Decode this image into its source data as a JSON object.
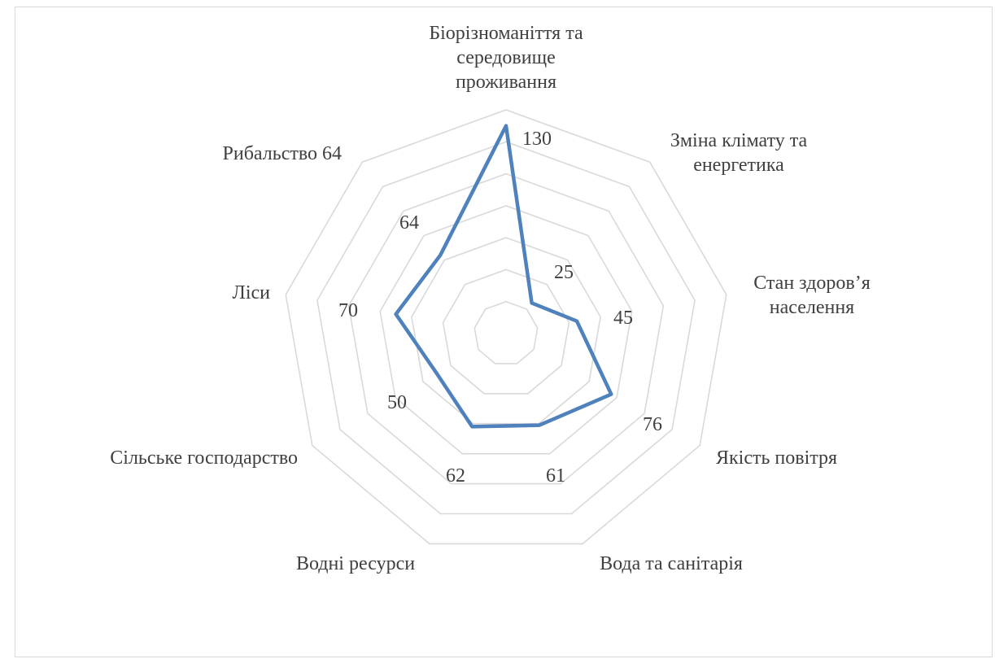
{
  "chart_data": {
    "type": "radar",
    "title": "",
    "categories": [
      [
        "Біорізноманіття та",
        "середовище",
        "проживання"
      ],
      [
        "Зміна клімату та",
        "енергетика"
      ],
      [
        "Стан здоров’я",
        "населення"
      ],
      [
        "Якість повітря"
      ],
      [
        "Вода та санітарія"
      ],
      [
        "Водні ресурси"
      ],
      [
        "Сільське господарство"
      ],
      [
        "Ліси"
      ],
      [
        "Рибальство 64"
      ]
    ],
    "series": [
      {
        "values": [
          130,
          25,
          45,
          76,
          61,
          62,
          50,
          70,
          64
        ],
        "color": "#4f81bd"
      }
    ],
    "value_labels": [
      "130",
      "25",
      "45",
      "76",
      "61",
      "62",
      "50",
      "70",
      "64"
    ],
    "rmax": 140,
    "grid_rings": 7,
    "axis_labels_shown": false,
    "legend": "none",
    "colors": {
      "grid": "#d9d9d9",
      "line": "#4f81bd",
      "text": "#404040",
      "border": "#d9d9d9"
    }
  }
}
